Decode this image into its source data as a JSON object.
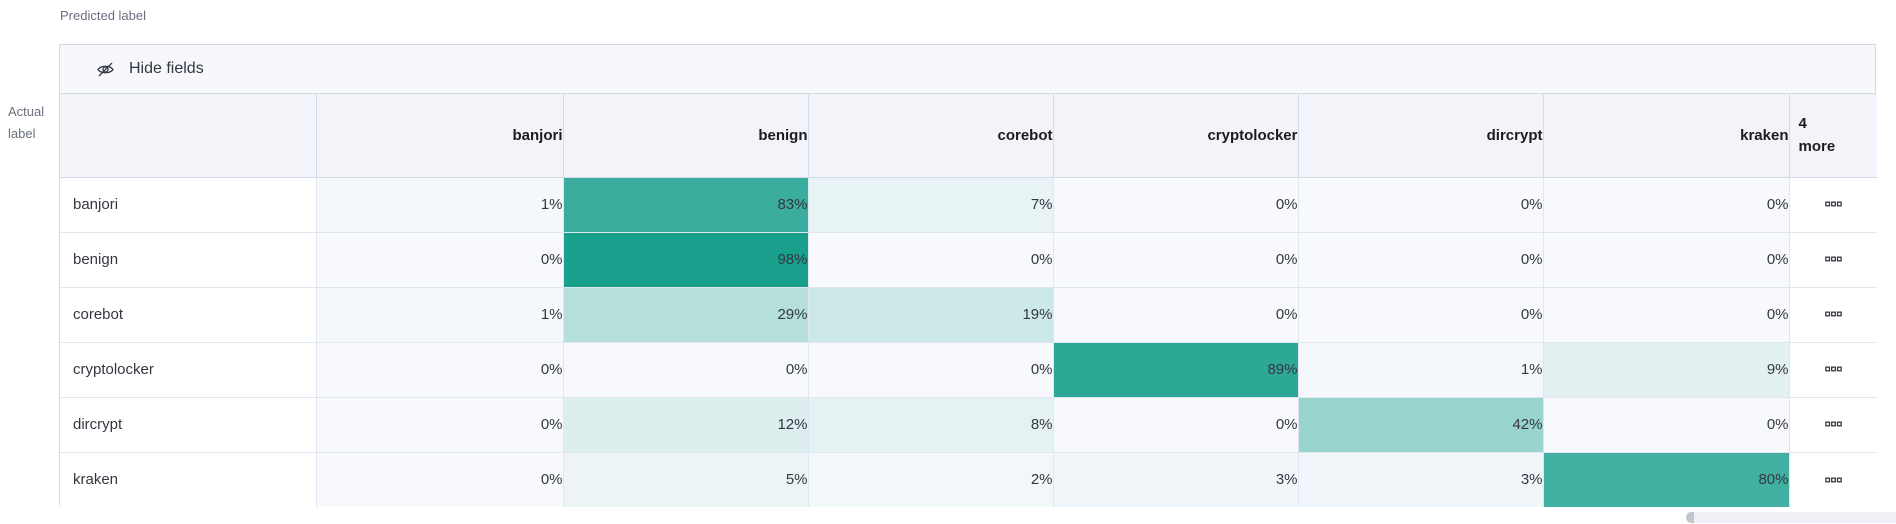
{
  "page": {
    "predicted_axis_label": "Predicted label",
    "actual_axis_label_line1": "Actual",
    "actual_axis_label_line2": "label"
  },
  "toolbar": {
    "hide_fields_label": "Hide fields"
  },
  "chart_data": {
    "type": "heatmap",
    "title": "",
    "x_axis_label": "Predicted label",
    "y_axis_label": "Actual label",
    "columns": [
      "banjori",
      "benign",
      "corebot",
      "cryptolocker",
      "dircrypt",
      "kraken"
    ],
    "hidden_columns_note": {
      "count": "4",
      "word": "more"
    },
    "value_suffix": "%",
    "rows": [
      {
        "label": "banjori",
        "values": [
          1,
          83,
          7,
          0,
          0,
          0
        ]
      },
      {
        "label": "benign",
        "values": [
          0,
          98,
          0,
          0,
          0,
          0
        ]
      },
      {
        "label": "corebot",
        "values": [
          1,
          29,
          19,
          0,
          0,
          0
        ]
      },
      {
        "label": "cryptolocker",
        "values": [
          0,
          0,
          0,
          89,
          1,
          9
        ]
      },
      {
        "label": "dircrypt",
        "values": [
          0,
          12,
          8,
          0,
          42,
          0
        ]
      },
      {
        "label": "kraken",
        "values": [
          0,
          5,
          2,
          3,
          3,
          80
        ]
      }
    ],
    "heatmap_scale": {
      "min_value": 0,
      "max_value": 100,
      "min_color": "#f7f9fc",
      "max_color": "#149e8b"
    }
  },
  "icons": {
    "hide_fields": "eye-closed-icon",
    "row_actions": "boxes-horizontal-icon"
  }
}
